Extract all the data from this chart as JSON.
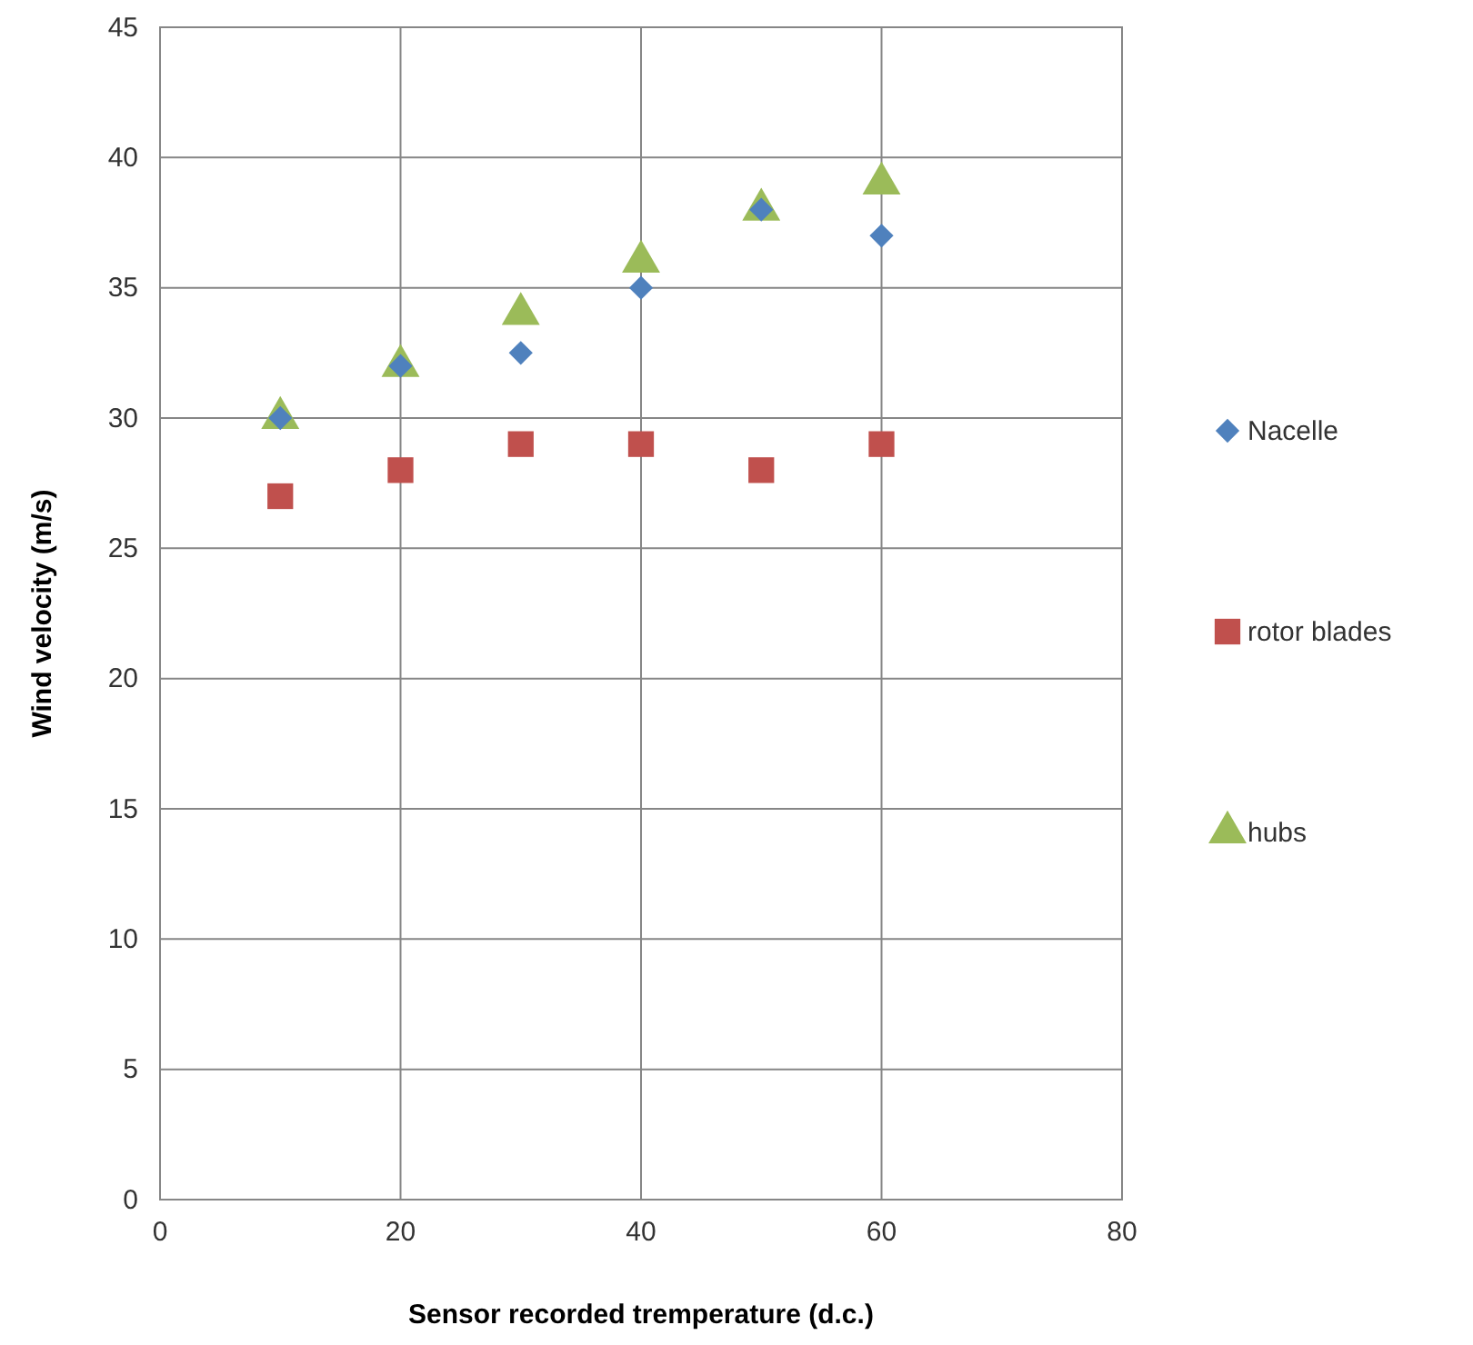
{
  "chart_data": {
    "type": "scatter",
    "xlabel": "Sensor recorded tremperature (d.c.)",
    "ylabel": "Wind velocity (m/s)",
    "xlim": [
      0,
      80
    ],
    "xticks": [
      0,
      20,
      40,
      60,
      80
    ],
    "ylim": [
      0,
      45
    ],
    "yticks": [
      0,
      5,
      10,
      15,
      20,
      25,
      30,
      35,
      40,
      45
    ],
    "grid": true,
    "legend": "right",
    "x": [
      10,
      20,
      30,
      40,
      50,
      60
    ],
    "series": [
      {
        "name": "Nacelle",
        "color": "#4f81bd",
        "marker": "diamond",
        "values": [
          30,
          32,
          32.5,
          35,
          38,
          37
        ]
      },
      {
        "name": "rotor blades",
        "color": "#c0504d",
        "marker": "square",
        "values": [
          27,
          28,
          29,
          29,
          28,
          29
        ]
      },
      {
        "name": "hubs",
        "color": "#9bbb59",
        "marker": "triangle",
        "values": [
          30,
          32,
          34,
          36,
          38,
          39
        ]
      }
    ]
  }
}
